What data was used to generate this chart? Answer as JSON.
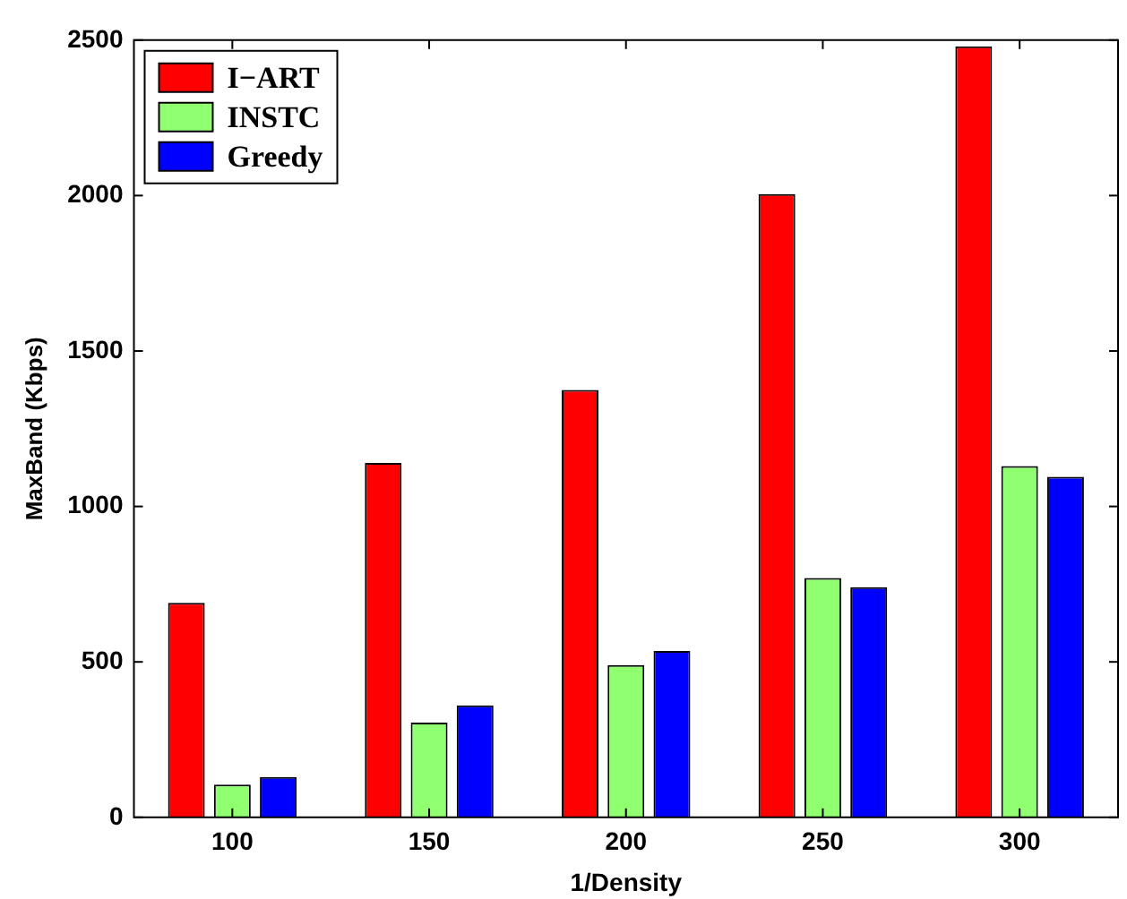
{
  "chart_data": {
    "type": "bar",
    "xlabel": "1/Density",
    "ylabel": "MaxBand (Kbps)",
    "categories": [
      "100",
      "150",
      "200",
      "250",
      "300"
    ],
    "series": [
      {
        "name": "I−ART",
        "color": "#ff0000",
        "values": [
          690,
          1140,
          1375,
          2005,
          2480
        ]
      },
      {
        "name": "INSTC",
        "color": "#90ff70",
        "values": [
          105,
          305,
          490,
          770,
          1130
        ]
      },
      {
        "name": "Greedy",
        "color": "#0000ff",
        "values": [
          130,
          360,
          535,
          740,
          1095
        ]
      }
    ],
    "ylim": [
      0,
      2500
    ],
    "yticks": [
      0,
      500,
      1000,
      1500,
      2000,
      2500
    ],
    "grid": false,
    "legend": "top left"
  }
}
